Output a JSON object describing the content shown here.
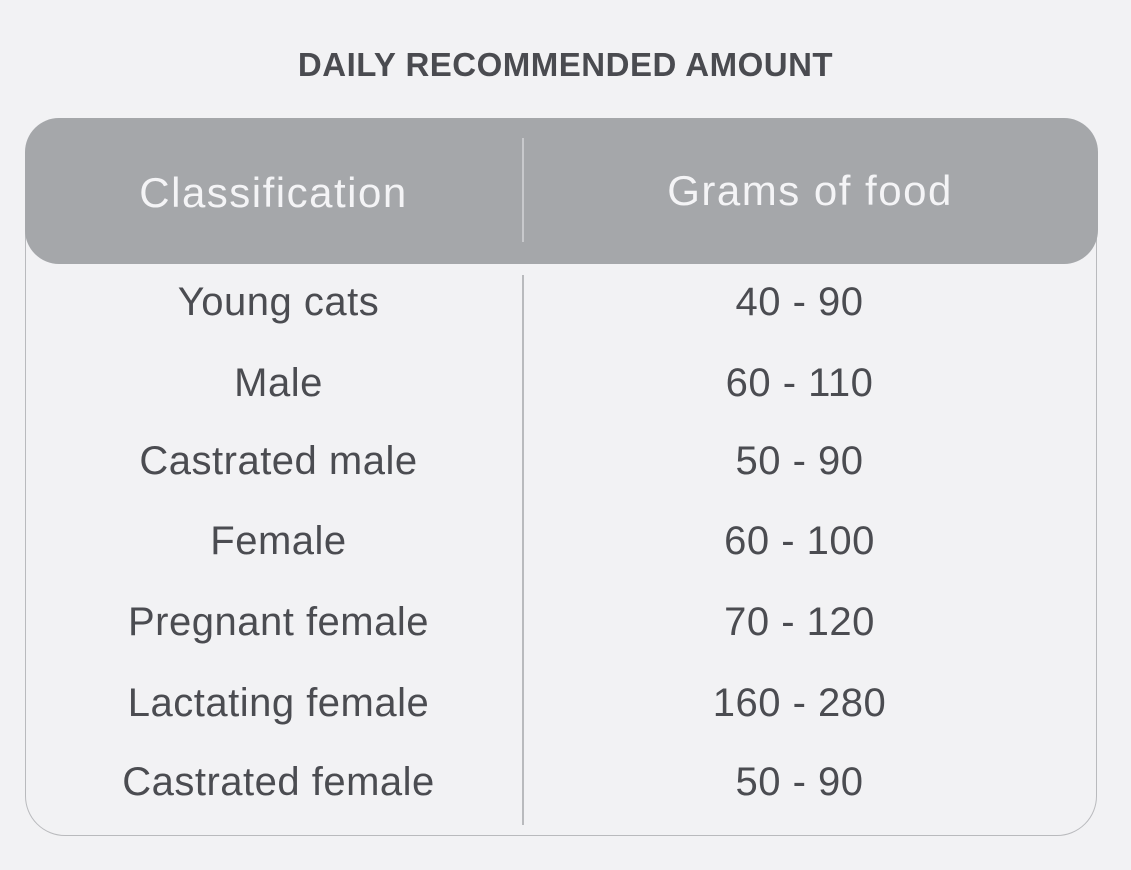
{
  "title": "DAILY RECOMMENDED AMOUNT",
  "table": {
    "headers": [
      "Classification",
      "Grams of food"
    ],
    "rows": [
      [
        "Young cats",
        "40 - 90"
      ],
      [
        "Male",
        "60 - 110"
      ],
      [
        "Castrated male",
        "50 - 90"
      ],
      [
        "Female",
        "60 - 100"
      ],
      [
        "Pregnant female",
        "70 - 120"
      ],
      [
        "Lactating female",
        "160 - 280"
      ],
      [
        "Castrated female",
        "50 - 90"
      ]
    ]
  },
  "colors": {
    "background": "#f2f2f4",
    "header_fill": "#a5a7aa",
    "header_text": "#f4f4f6",
    "body_text": "#4b4c51",
    "border": "#b9babd"
  }
}
